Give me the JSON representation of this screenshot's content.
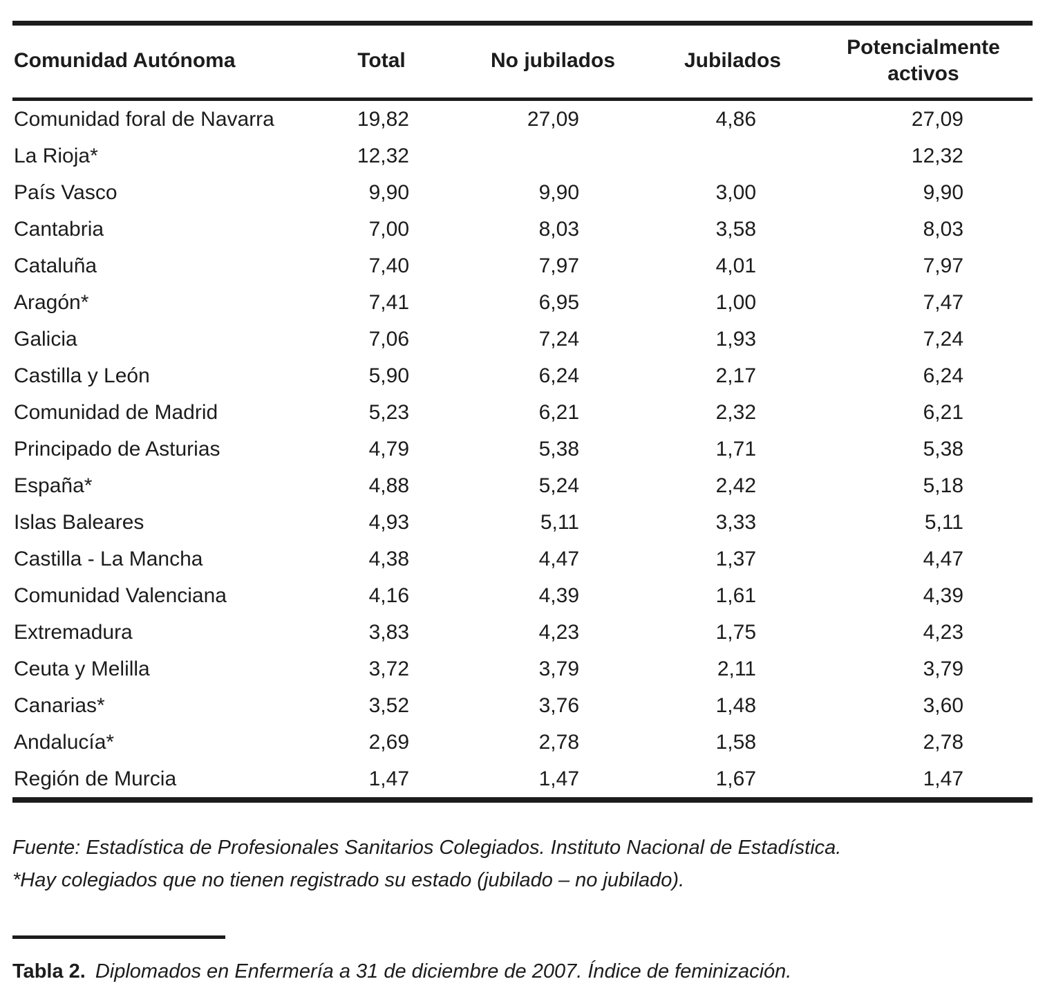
{
  "table": {
    "columns": [
      "Comunidad Autónoma",
      "Total",
      "No jubilados",
      "Jubilados",
      "Potencialmente activos"
    ],
    "rows": [
      {
        "name": "Comunidad foral de Navarra",
        "total": "19,82",
        "no_jubilados": "27,09",
        "jubilados": "4,86",
        "potencialmente_activos": "27,09"
      },
      {
        "name": "La Rioja*",
        "total": "12,32",
        "no_jubilados": "",
        "jubilados": "",
        "potencialmente_activos": "12,32"
      },
      {
        "name": "País Vasco",
        "total": "9,90",
        "no_jubilados": "9,90",
        "jubilados": "3,00",
        "potencialmente_activos": "9,90"
      },
      {
        "name": "Cantabria",
        "total": "7,00",
        "no_jubilados": "8,03",
        "jubilados": "3,58",
        "potencialmente_activos": "8,03"
      },
      {
        "name": "Cataluña",
        "total": "7,40",
        "no_jubilados": "7,97",
        "jubilados": "4,01",
        "potencialmente_activos": "7,97"
      },
      {
        "name": "Aragón*",
        "total": "7,41",
        "no_jubilados": "6,95",
        "jubilados": "1,00",
        "potencialmente_activos": "7,47"
      },
      {
        "name": "Galicia",
        "total": "7,06",
        "no_jubilados": "7,24",
        "jubilados": "1,93",
        "potencialmente_activos": "7,24"
      },
      {
        "name": "Castilla y León",
        "total": "5,90",
        "no_jubilados": "6,24",
        "jubilados": "2,17",
        "potencialmente_activos": "6,24"
      },
      {
        "name": "Comunidad de Madrid",
        "total": "5,23",
        "no_jubilados": "6,21",
        "jubilados": "2,32",
        "potencialmente_activos": "6,21"
      },
      {
        "name": "Principado de Asturias",
        "total": "4,79",
        "no_jubilados": "5,38",
        "jubilados": "1,71",
        "potencialmente_activos": "5,38"
      },
      {
        "name": "España*",
        "total": "4,88",
        "no_jubilados": "5,24",
        "jubilados": "2,42",
        "potencialmente_activos": "5,18"
      },
      {
        "name": "Islas Baleares",
        "total": "4,93",
        "no_jubilados": "5,11",
        "jubilados": "3,33",
        "potencialmente_activos": "5,11"
      },
      {
        "name": "Castilla - La Mancha",
        "total": "4,38",
        "no_jubilados": "4,47",
        "jubilados": "1,37",
        "potencialmente_activos": "4,47"
      },
      {
        "name": "Comunidad Valenciana",
        "total": "4,16",
        "no_jubilados": "4,39",
        "jubilados": "1,61",
        "potencialmente_activos": "4,39"
      },
      {
        "name": "Extremadura",
        "total": "3,83",
        "no_jubilados": "4,23",
        "jubilados": "1,75",
        "potencialmente_activos": "4,23"
      },
      {
        "name": "Ceuta y Melilla",
        "total": "3,72",
        "no_jubilados": "3,79",
        "jubilados": "2,11",
        "potencialmente_activos": "3,79"
      },
      {
        "name": "Canarias*",
        "total": "3,52",
        "no_jubilados": "3,76",
        "jubilados": "1,48",
        "potencialmente_activos": "3,60"
      },
      {
        "name": "Andalucía*",
        "total": "2,69",
        "no_jubilados": "2,78",
        "jubilados": "1,58",
        "potencialmente_activos": "2,78"
      },
      {
        "name": "Región de Murcia",
        "total": "1,47",
        "no_jubilados": "1,47",
        "jubilados": "1,67",
        "potencialmente_activos": "1,47"
      }
    ]
  },
  "footnotes": [
    "Fuente: Estadística de Profesionales Sanitarios Colegiados. Instituto Nacional de Estadística.",
    "*Hay colegiados que no tienen registrado su estado (jubilado – no jubilado)."
  ],
  "caption": {
    "label": "Tabla 2.",
    "text": "Diplomados en Enfermería a 31 de diciembre de 2007. Índice de feminización."
  },
  "colors": {
    "text": "#1c1c1c",
    "background": "#ffffff"
  }
}
